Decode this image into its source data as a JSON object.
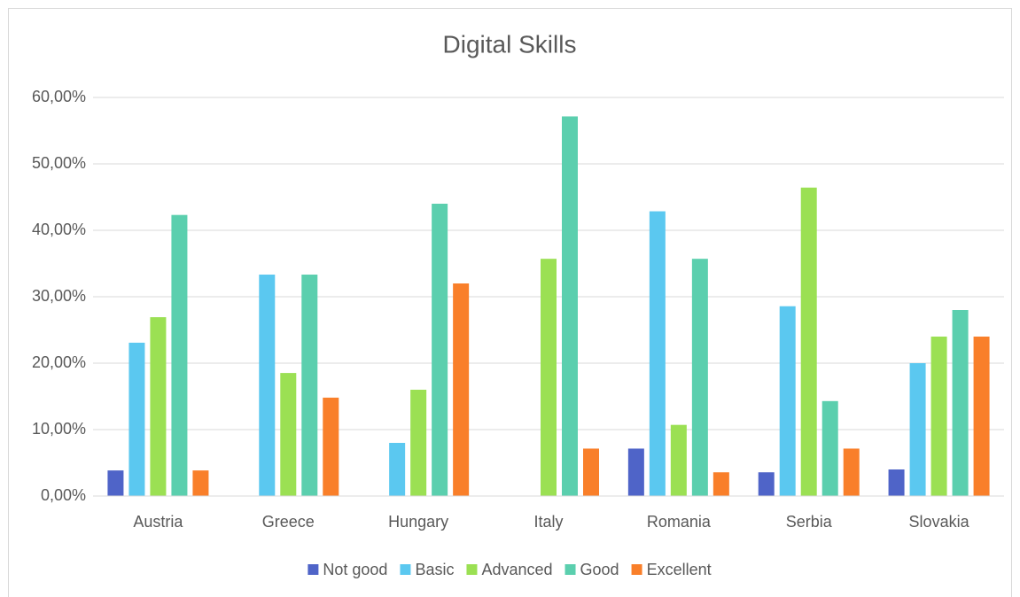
{
  "chart_data": {
    "type": "bar",
    "title": "Digital Skills",
    "categories": [
      "Austria",
      "Greece",
      "Hungary",
      "Italy",
      "Romania",
      "Serbia",
      "Slovakia"
    ],
    "series": [
      {
        "name": "Not good",
        "color": "#4f64c8",
        "values": [
          3.85,
          0,
          0,
          0,
          7.14,
          3.57,
          4
        ]
      },
      {
        "name": "Basic",
        "color": "#5bc8f0",
        "values": [
          23.08,
          33.33,
          8,
          0,
          42.86,
          28.57,
          20
        ]
      },
      {
        "name": "Advanced",
        "color": "#9be053",
        "values": [
          26.92,
          18.52,
          16,
          35.71,
          10.71,
          46.43,
          24
        ]
      },
      {
        "name": "Good",
        "color": "#5bcfae",
        "values": [
          42.31,
          33.33,
          44,
          57.14,
          35.71,
          14.29,
          28
        ]
      },
      {
        "name": "Excellent",
        "color": "#f97f2a",
        "values": [
          3.85,
          14.81,
          32,
          7.14,
          3.57,
          7.14,
          24
        ]
      }
    ],
    "ylim": [
      0,
      60
    ],
    "yticks": [
      {
        "value": 0,
        "label": "0,00%"
      },
      {
        "value": 10,
        "label": "10,00%"
      },
      {
        "value": 20,
        "label": "20,00%"
      },
      {
        "value": 30,
        "label": "30,00%"
      },
      {
        "value": 40,
        "label": "40,00%"
      },
      {
        "value": 50,
        "label": "50,00%"
      },
      {
        "value": 60,
        "label": "60,00%"
      }
    ],
    "grid": true,
    "legend": "bottom"
  }
}
